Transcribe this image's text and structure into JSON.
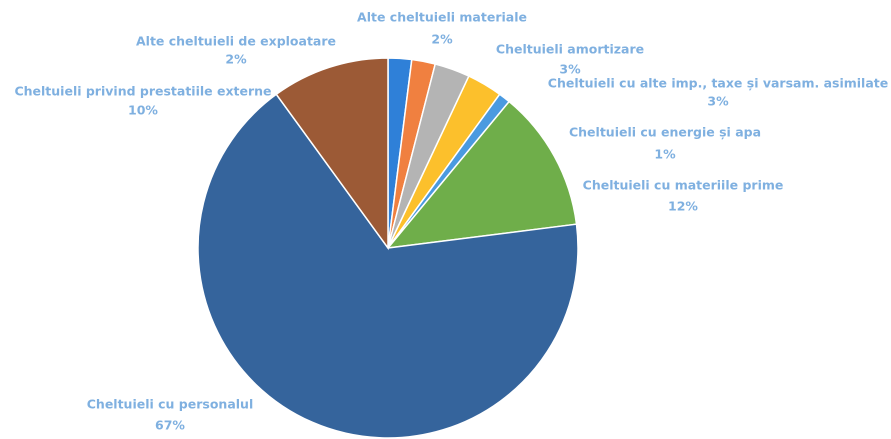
{
  "chart_data": {
    "type": "pie",
    "categories": [
      "Alte cheltuieli de exploatare",
      "Alte cheltuieli materiale",
      "Cheltuieli amortizare",
      "Cheltuieli cu alte imp., taxe și varsam. asimilate",
      "Cheltuieli cu energie și apa",
      "Cheltuieli cu materiile prime",
      "Cheltuieli cu personalul",
      "Cheltuieli privind prestatiile externe"
    ],
    "values": [
      2,
      2,
      3,
      3,
      1,
      12,
      67,
      10
    ],
    "value_labels": [
      "2%",
      "2%",
      "3%",
      "3%",
      "1%",
      "12%",
      "67%",
      "10%"
    ],
    "colors": [
      "#2f80d8",
      "#f08040",
      "#b4b4b4",
      "#fcc02c",
      "#4a9ae0",
      "#6fae4a",
      "#35649c",
      "#9c5a36"
    ]
  }
}
